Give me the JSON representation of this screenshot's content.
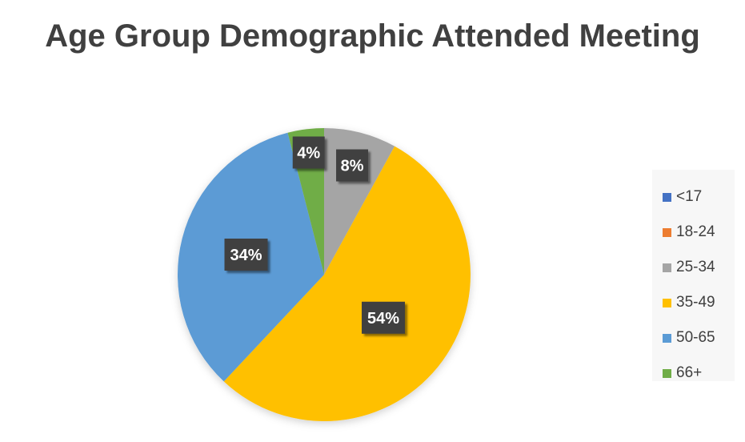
{
  "chart_data": {
    "type": "pie",
    "title": "Age Group Demographic Attended Meeting",
    "categories": [
      "<17",
      "18-24",
      "25-34",
      "35-49",
      "50-65",
      "66+"
    ],
    "values": [
      0,
      0,
      8,
      54,
      34,
      4
    ],
    "data_labels": [
      "",
      "",
      "8%",
      "54%",
      "34%",
      "4%"
    ],
    "colors": [
      "#4472c4",
      "#ed7d31",
      "#a5a5a5",
      "#ffc000",
      "#5b9bd5",
      "#70ad47"
    ],
    "start_angle_deg": 0,
    "direction": "clockwise",
    "legend_position": "right"
  }
}
